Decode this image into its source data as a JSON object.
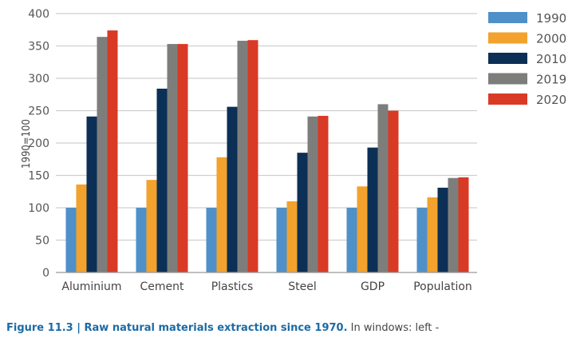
{
  "chart_data": {
    "type": "bar",
    "title": "",
    "xlabel": "",
    "ylabel": "1990=100",
    "ylim": [
      0,
      400
    ],
    "yticks": [
      0,
      50,
      100,
      150,
      200,
      250,
      300,
      350,
      400
    ],
    "grid": true,
    "legend_position": "right",
    "categories": [
      "Aluminium",
      "Cement",
      "Plastics",
      "Steel",
      "GDP",
      "Population"
    ],
    "series": [
      {
        "name": "1990",
        "color": "#4f90c9",
        "values": [
          100,
          100,
          100,
          100,
          100,
          100
        ]
      },
      {
        "name": "2000",
        "color": "#f2a22d",
        "values": [
          136,
          143,
          178,
          110,
          133,
          116
        ]
      },
      {
        "name": "2010",
        "color": "#0c2f55",
        "values": [
          241,
          284,
          256,
          185,
          193,
          131
        ]
      },
      {
        "name": "2019",
        "color": "#7d7e7c",
        "values": [
          364,
          353,
          358,
          241,
          260,
          146
        ]
      },
      {
        "name": "2020",
        "color": "#d93a25",
        "values": [
          374,
          353,
          359,
          242,
          250,
          147
        ]
      }
    ]
  },
  "caption": {
    "label": "Figure 11.3 | Raw natural materials extraction since 1970.",
    "rest": " In windows: left -"
  }
}
